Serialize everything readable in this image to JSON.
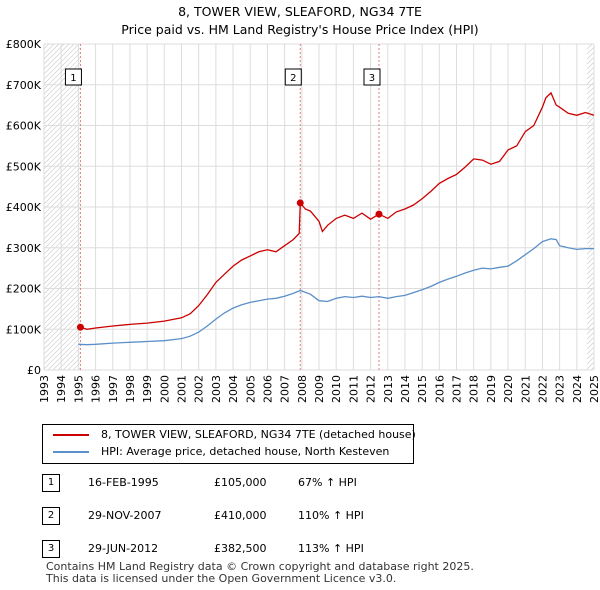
{
  "title": "8, TOWER VIEW, SLEAFORD, NG34 7TE",
  "subtitle": "Price paid vs. HM Land Registry's House Price Index (HPI)",
  "colors": {
    "property": "#cc0000",
    "hpi": "#5b8fc9",
    "hatch": "#cccccc",
    "grid": "#dddddd",
    "marker_line": "#e08080"
  },
  "legend": {
    "property_label": "8, TOWER VIEW, SLEAFORD, NG34 7TE (detached house)",
    "hpi_label": "HPI: Average price, detached house, North Kesteven"
  },
  "sales": [
    {
      "num": "1",
      "date": "16-FEB-1995",
      "price": "£105,000",
      "hpi": "67% ↑ HPI"
    },
    {
      "num": "2",
      "date": "29-NOV-2007",
      "price": "£410,000",
      "hpi": "110% ↑ HPI"
    },
    {
      "num": "3",
      "date": "29-JUN-2012",
      "price": "£382,500",
      "hpi": "113% ↑ HPI"
    }
  ],
  "footer": {
    "line1": "Contains HM Land Registry data © Crown copyright and database right 2025.",
    "line2": "This data is licensed under the Open Government Licence v3.0."
  },
  "chart_data": {
    "type": "line",
    "xlim": [
      1993,
      2025
    ],
    "ylim": [
      0,
      800000
    ],
    "x_ticks": [
      1993,
      1994,
      1995,
      1996,
      1997,
      1998,
      1999,
      2000,
      2001,
      2002,
      2003,
      2004,
      2005,
      2006,
      2007,
      2008,
      2009,
      2010,
      2011,
      2012,
      2013,
      2014,
      2015,
      2016,
      2017,
      2018,
      2019,
      2020,
      2021,
      2022,
      2023,
      2024,
      2025
    ],
    "y_ticks": [
      0,
      100000,
      200000,
      300000,
      400000,
      500000,
      600000,
      700000,
      800000
    ],
    "y_tick_labels": [
      "£0",
      "£100K",
      "£200K",
      "£300K",
      "£400K",
      "£500K",
      "£600K",
      "£700K",
      "£800K"
    ],
    "sale_markers": [
      {
        "label": "1",
        "x": 1995.12,
        "y": 105000
      },
      {
        "label": "2",
        "x": 2007.91,
        "y": 410000
      },
      {
        "label": "3",
        "x": 2012.49,
        "y": 382500
      }
    ],
    "series": [
      {
        "name": "8, TOWER VIEW, SLEAFORD, NG34 7TE (detached house)",
        "x": [
          1995.12,
          1995.5,
          1996,
          1997,
          1998,
          1999,
          2000,
          2001,
          2001.5,
          2002,
          2002.5,
          2003,
          2003.5,
          2004,
          2004.5,
          2005,
          2005.5,
          2006,
          2006.5,
          2007,
          2007.5,
          2007.85,
          2007.91,
          2008.2,
          2008.5,
          2009,
          2009.2,
          2009.5,
          2010,
          2010.5,
          2011,
          2011.5,
          2012,
          2012.49,
          2013,
          2013.5,
          2014,
          2014.5,
          2015,
          2015.5,
          2016,
          2016.5,
          2017,
          2017.5,
          2018,
          2018.5,
          2019,
          2019.5,
          2020,
          2020.5,
          2021,
          2021.5,
          2022,
          2022.2,
          2022.5,
          2022.8,
          2023,
          2023.5,
          2024,
          2024.5,
          2025
        ],
        "values": [
          105000,
          100000,
          103000,
          108000,
          112000,
          115000,
          120000,
          128000,
          138000,
          158000,
          185000,
          215000,
          235000,
          255000,
          270000,
          280000,
          290000,
          295000,
          290000,
          305000,
          320000,
          335000,
          410000,
          395000,
          390000,
          365000,
          340000,
          355000,
          372000,
          380000,
          372000,
          385000,
          370000,
          382500,
          372000,
          388000,
          395000,
          405000,
          420000,
          438000,
          458000,
          470000,
          480000,
          498000,
          518000,
          515000,
          505000,
          512000,
          540000,
          550000,
          585000,
          600000,
          645000,
          668000,
          680000,
          650000,
          645000,
          630000,
          625000,
          632000,
          625000
        ]
      },
      {
        "name": "HPI: Average price, detached house, North Kesteven",
        "x": [
          1995,
          1995.5,
          1996,
          1997,
          1998,
          1999,
          2000,
          2001,
          2001.5,
          2002,
          2002.5,
          2003,
          2003.5,
          2004,
          2004.5,
          2005,
          2005.5,
          2006,
          2006.5,
          2007,
          2007.5,
          2007.91,
          2008.5,
          2009,
          2009.5,
          2010,
          2010.5,
          2011,
          2011.5,
          2012,
          2012.49,
          2013,
          2013.5,
          2014,
          2014.5,
          2015,
          2015.5,
          2016,
          2016.5,
          2017,
          2017.5,
          2018,
          2018.5,
          2019,
          2019.5,
          2020,
          2020.5,
          2021,
          2021.5,
          2022,
          2022.5,
          2022.8,
          2023,
          2023.5,
          2024,
          2024.5,
          2025
        ],
        "values": [
          63000,
          62000,
          63000,
          66000,
          68000,
          70000,
          72000,
          77000,
          83000,
          93000,
          108000,
          125000,
          140000,
          152000,
          160000,
          166000,
          170000,
          174000,
          176000,
          181000,
          188000,
          195000,
          186000,
          170000,
          168000,
          176000,
          180000,
          178000,
          181000,
          178000,
          180000,
          176000,
          180000,
          183000,
          190000,
          197000,
          205000,
          215000,
          223000,
          230000,
          238000,
          245000,
          250000,
          248000,
          252000,
          255000,
          268000,
          283000,
          298000,
          315000,
          322000,
          320000,
          305000,
          300000,
          296000,
          298000,
          298000
        ]
      }
    ]
  }
}
